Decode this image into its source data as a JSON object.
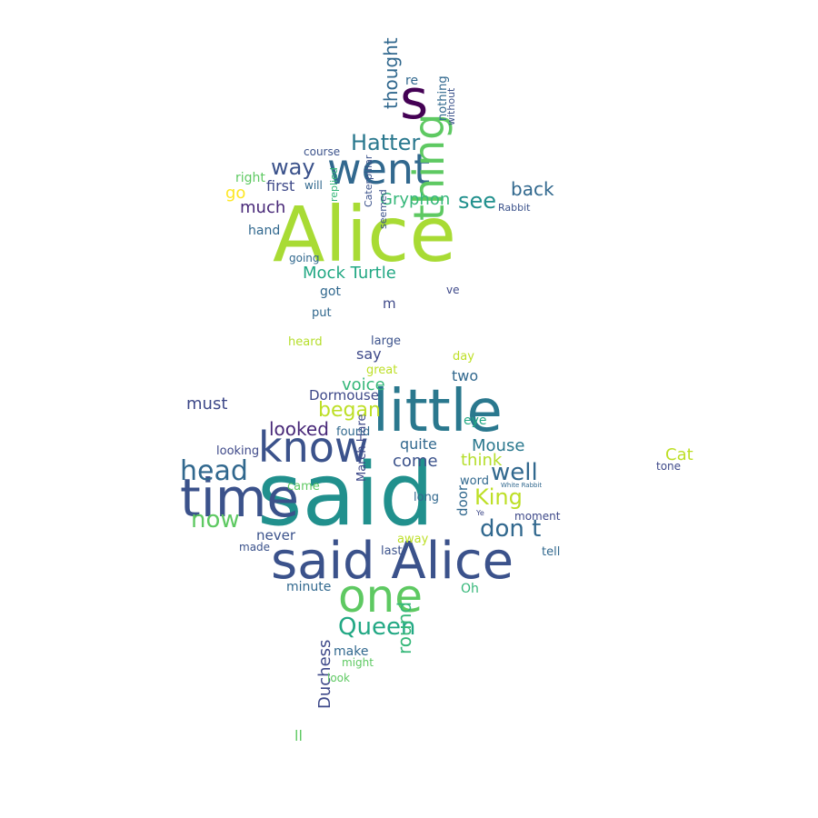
{
  "words": [
    {
      "text": "said",
      "color": "#21908d"
    },
    {
      "text": "Alice",
      "color": "#a8db34"
    },
    {
      "text": "said Alice",
      "color": "#3b528b"
    },
    {
      "text": "little",
      "color": "#2a788e"
    },
    {
      "text": "time",
      "color": "#3b528b"
    },
    {
      "text": "know",
      "color": "#3b528b"
    },
    {
      "text": "went",
      "color": "#31688e"
    },
    {
      "text": "one",
      "color": "#5ec962"
    },
    {
      "text": "thing",
      "color": "#5ec962"
    },
    {
      "text": "s",
      "color": "#440154"
    },
    {
      "text": "Queen",
      "color": "#22a884"
    },
    {
      "text": "head",
      "color": "#31688e"
    },
    {
      "text": "now",
      "color": "#5ec962"
    },
    {
      "text": "don t",
      "color": "#31688e"
    },
    {
      "text": "well",
      "color": "#31688e"
    },
    {
      "text": "King",
      "color": "#bddf26"
    },
    {
      "text": "Hatter",
      "color": "#2a788e"
    },
    {
      "text": "way",
      "color": "#3b528b"
    },
    {
      "text": "see",
      "color": "#21908d"
    },
    {
      "text": "back",
      "color": "#31688e"
    },
    {
      "text": "Mock Turtle",
      "color": "#22a884"
    },
    {
      "text": "Gryphon",
      "color": "#35b779"
    },
    {
      "text": "began",
      "color": "#bddf26"
    },
    {
      "text": "looked",
      "color": "#482878"
    },
    {
      "text": "thought",
      "color": "#31688e"
    },
    {
      "text": "much",
      "color": "#482878"
    },
    {
      "text": "first",
      "color": "#3e4989"
    },
    {
      "text": "go",
      "color": "#fde725"
    },
    {
      "text": "Mouse",
      "color": "#2a788e"
    },
    {
      "text": "Cat",
      "color": "#bddf26"
    },
    {
      "text": "round",
      "color": "#35b779"
    },
    {
      "text": "Duchess",
      "color": "#3e4989"
    },
    {
      "text": "must",
      "color": "#3e4989"
    },
    {
      "text": "voice",
      "color": "#35b779"
    },
    {
      "text": "come",
      "color": "#3b528b"
    },
    {
      "text": "quite",
      "color": "#31688e"
    },
    {
      "text": "think",
      "color": "#b5de2b"
    },
    {
      "text": "eye",
      "color": "#22a884"
    },
    {
      "text": "two",
      "color": "#31688e"
    },
    {
      "text": "say",
      "color": "#3e4989"
    },
    {
      "text": "Dormouse",
      "color": "#3e4989"
    },
    {
      "text": "right",
      "color": "#5ec962"
    },
    {
      "text": "March Hare",
      "color": "#3e4989"
    },
    {
      "text": "make",
      "color": "#31688e"
    },
    {
      "text": "door",
      "color": "#31688e"
    },
    {
      "text": "never",
      "color": "#3b528b"
    },
    {
      "text": "got",
      "color": "#31688e"
    },
    {
      "text": "hand",
      "color": "#31688e"
    },
    {
      "text": "minute",
      "color": "#31688e"
    },
    {
      "text": "Oh",
      "color": "#35b779"
    },
    {
      "text": "found",
      "color": "#31688e"
    },
    {
      "text": "moment",
      "color": "#3e4989"
    },
    {
      "text": "tell",
      "color": "#31688e"
    },
    {
      "text": "long",
      "color": "#31688e"
    },
    {
      "text": "word",
      "color": "#31688e"
    },
    {
      "text": "large",
      "color": "#3b528b"
    },
    {
      "text": "looking",
      "color": "#3e4989"
    },
    {
      "text": "heard",
      "color": "#b5de2b"
    },
    {
      "text": "put",
      "color": "#31688e"
    },
    {
      "text": "m",
      "color": "#3e4989"
    },
    {
      "text": "re",
      "color": "#31688e"
    },
    {
      "text": "day",
      "color": "#bddf26"
    },
    {
      "text": "great",
      "color": "#bddf26"
    },
    {
      "text": "away",
      "color": "#bddf26"
    },
    {
      "text": "last",
      "color": "#3b528b"
    },
    {
      "text": "came",
      "color": "#5ec962"
    },
    {
      "text": "tone",
      "color": "#3e4989"
    },
    {
      "text": "going",
      "color": "#31688e"
    },
    {
      "text": "might",
      "color": "#5ec962"
    },
    {
      "text": "look",
      "color": "#5ec962"
    },
    {
      "text": "made",
      "color": "#3b528b"
    },
    {
      "text": "will",
      "color": "#31688e"
    },
    {
      "text": "nothing",
      "color": "#31688e"
    },
    {
      "text": "without",
      "color": "#3b528b"
    },
    {
      "text": "course",
      "color": "#3b528b"
    },
    {
      "text": "ve",
      "color": "#3e4989"
    },
    {
      "text": "replied",
      "color": "#35b779"
    },
    {
      "text": "Caterpillar",
      "color": "#3b528b"
    },
    {
      "text": "seemed",
      "color": "#3b528b"
    },
    {
      "text": "Rabbit",
      "color": "#3b528b"
    },
    {
      "text": "ll",
      "color": "#5ec962"
    },
    {
      "text": "Ye",
      "color": "#3e4989"
    },
    {
      "text": "White Rabbit",
      "color": "#31688e"
    }
  ]
}
